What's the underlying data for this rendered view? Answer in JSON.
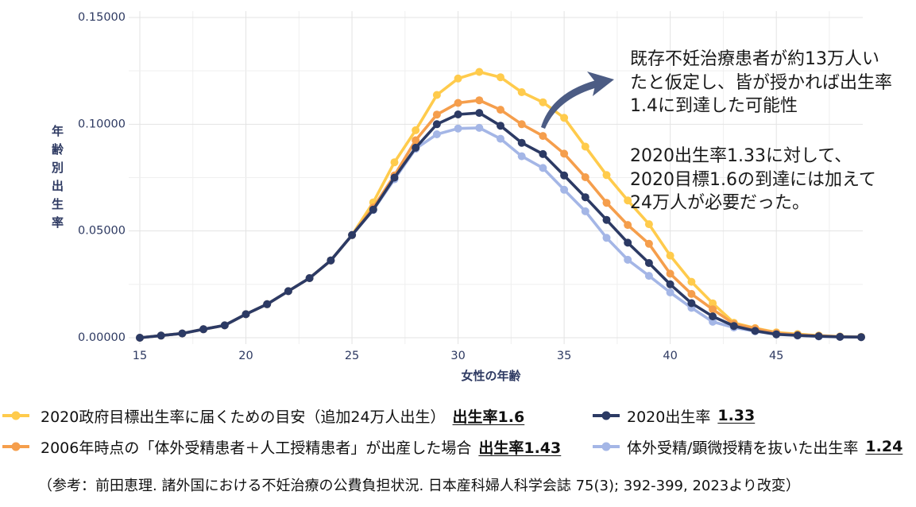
{
  "chart_data": {
    "type": "line",
    "xlabel": "女性の年齢",
    "ylabel": "年齢別出生率",
    "xlim": [
      15,
      49
    ],
    "ylim": [
      0,
      0.15
    ],
    "xticks": [
      15,
      20,
      25,
      30,
      35,
      40,
      45
    ],
    "yticks": [
      0,
      0.05,
      0.1,
      0.15
    ],
    "ytick_labels": [
      "0.00000",
      "0.05000",
      "0.10000",
      "0.15000"
    ],
    "grid": true,
    "legend_position": "bottom",
    "x": [
      15,
      16,
      17,
      18,
      19,
      20,
      21,
      22,
      23,
      24,
      25,
      26,
      27,
      28,
      29,
      30,
      31,
      32,
      33,
      34,
      35,
      36,
      37,
      38,
      39,
      40,
      41,
      42,
      43,
      44,
      45,
      46,
      47,
      48,
      49
    ],
    "series": [
      {
        "name": "2020政府目標出生率に届くための目安（追加24万人出生）",
        "rate_label": "出生率1.6",
        "color": "#FFCB4C",
        "values": [
          0.0,
          0.001,
          0.002,
          0.004,
          0.0058,
          0.011,
          0.0157,
          0.0218,
          0.0279,
          0.0362,
          0.0481,
          0.0634,
          0.0822,
          0.0972,
          0.1137,
          0.1214,
          0.1245,
          0.122,
          0.115,
          0.1103,
          0.103,
          0.0895,
          0.0762,
          0.0643,
          0.0532,
          0.0385,
          0.0262,
          0.0161,
          0.007,
          0.0045,
          0.0025,
          0.0017,
          0.001,
          0.0006,
          0.0004
        ]
      },
      {
        "name": "2020出生率",
        "rate_label": "1.33",
        "color": "#2C3A64",
        "values": [
          0.0,
          0.001,
          0.002,
          0.004,
          0.0058,
          0.011,
          0.0157,
          0.0218,
          0.0279,
          0.0362,
          0.0481,
          0.06,
          0.075,
          0.089,
          0.1,
          0.1046,
          0.1053,
          0.0993,
          0.0913,
          0.086,
          0.076,
          0.0658,
          0.0552,
          0.0445,
          0.035,
          0.025,
          0.0162,
          0.01,
          0.0055,
          0.0032,
          0.0016,
          0.0011,
          0.0007,
          0.0004,
          0.0003
        ]
      },
      {
        "name": "2006年時点の「体外受精患者＋人工授精患者」が出産した場合",
        "rate_label": "出生率1.43",
        "color": "#F59E4C",
        "values": [
          0.0,
          0.001,
          0.002,
          0.004,
          0.0058,
          0.011,
          0.0157,
          0.0218,
          0.0279,
          0.0362,
          0.0481,
          0.061,
          0.076,
          0.0925,
          0.1045,
          0.11,
          0.1112,
          0.1068,
          0.1,
          0.0945,
          0.0862,
          0.0752,
          0.0632,
          0.0528,
          0.044,
          0.03,
          0.0205,
          0.0133,
          0.0065,
          0.0043,
          0.0022,
          0.0014,
          0.0009,
          0.0005,
          0.0003
        ]
      },
      {
        "name": "体外受精/顕微授精を抜いた出生率",
        "rate_label": "1.24",
        "color": "#A4B6E6",
        "values": [
          0.0,
          0.001,
          0.002,
          0.004,
          0.0058,
          0.011,
          0.0157,
          0.0218,
          0.0279,
          0.0362,
          0.0481,
          0.0598,
          0.0742,
          0.0885,
          0.0953,
          0.098,
          0.0983,
          0.0932,
          0.085,
          0.0795,
          0.0693,
          0.0592,
          0.0468,
          0.0365,
          0.029,
          0.0212,
          0.014,
          0.0075,
          0.0048,
          0.003,
          0.0016,
          0.001,
          0.0006,
          0.0004,
          0.0003
        ]
      }
    ],
    "annotations": [
      {
        "lines": [
          "既存不妊治療患者が約13万人い",
          "たと仮定し、皆が授かれば出生率",
          "1.4に到達した可能性"
        ]
      },
      {
        "lines": [
          "2020出生率1.33に対して、",
          "2020目標1.6の到達には加えて",
          "24万人が必要だった。"
        ]
      }
    ],
    "annotation_arrow": {
      "icon": "curved-arrow-icon",
      "color": "#4C5C84"
    }
  },
  "styles": {
    "axis_color": "#2E3A62",
    "text_color": "#1A1A1A"
  },
  "footer": {
    "citation": "（参考：前田恵理. 諸外国における不妊治療の公費負担状況. 日本産科婦人科学会誌 75(3); 392-399, 2023より改変）"
  }
}
